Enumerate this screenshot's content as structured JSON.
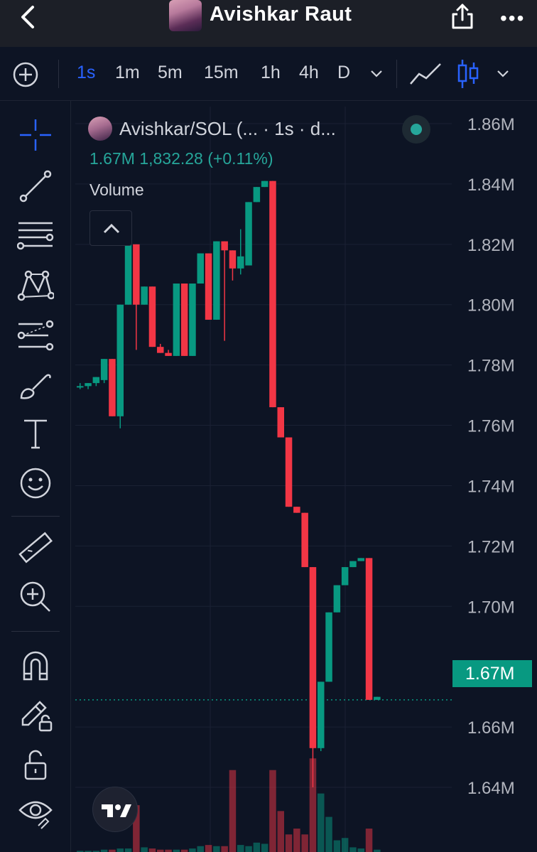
{
  "header": {
    "title": "Avishkar Raut",
    "back_icon": "chevron-left-icon",
    "share_icon": "share-icon",
    "more_icon": "more-dots-icon"
  },
  "toolbar": {
    "add_icon": "plus-circle-icon",
    "intervals": [
      "1s",
      "1m",
      "5m",
      "15m",
      "1h",
      "4h",
      "D"
    ],
    "active_interval": "1s",
    "chart_styles": [
      "line-chart-icon",
      "candles-icon"
    ]
  },
  "sidebar": {
    "tools": [
      "crosshair-icon",
      "trendline-icon",
      "fib-retracement-icon",
      "pattern-icon",
      "prediction-icon",
      "brush-icon",
      "text-icon",
      "emoji-icon",
      "ruler-icon",
      "zoom-in-icon",
      "magnet-icon",
      "lock-drawing-icon",
      "lock-icon",
      "eye-icon"
    ]
  },
  "legend": {
    "symbol": "Avishkar/SOL (... · 1s · d...",
    "values": "1.67M  1,832.28 (+0.11%)",
    "volume_label": "Volume"
  },
  "colors": {
    "up": "#089981",
    "down": "#f23645",
    "accent": "#2962ff",
    "background": "#0d1424"
  },
  "chart_data": {
    "type": "candlestick",
    "y_ticks": [
      "1.86M",
      "1.84M",
      "1.82M",
      "1.80M",
      "1.78M",
      "1.76M",
      "1.74M",
      "1.72M",
      "1.70M",
      "1.66M",
      "1.64M"
    ],
    "current_price": "1.67M",
    "ylim": [
      1.63,
      1.865
    ],
    "candles": [
      {
        "o": 1.773,
        "h": 1.774,
        "l": 1.772,
        "c": 1.773
      },
      {
        "o": 1.773,
        "h": 1.774,
        "l": 1.772,
        "c": 1.774
      },
      {
        "o": 1.774,
        "h": 1.776,
        "l": 1.773,
        "c": 1.776
      },
      {
        "o": 1.775,
        "h": 1.782,
        "l": 1.774,
        "c": 1.782
      },
      {
        "o": 1.782,
        "h": 1.782,
        "l": 1.763,
        "c": 1.763
      },
      {
        "o": 1.763,
        "h": 1.8,
        "l": 1.759,
        "c": 1.8
      },
      {
        "o": 1.8,
        "h": 1.82,
        "l": 1.8,
        "c": 1.82
      },
      {
        "o": 1.82,
        "h": 1.82,
        "l": 1.785,
        "c": 1.8
      },
      {
        "o": 1.8,
        "h": 1.806,
        "l": 1.8,
        "c": 1.806
      },
      {
        "o": 1.806,
        "h": 1.806,
        "l": 1.786,
        "c": 1.786
      },
      {
        "o": 1.786,
        "h": 1.787,
        "l": 1.784,
        "c": 1.784
      },
      {
        "o": 1.784,
        "h": 1.785,
        "l": 1.783,
        "c": 1.783
      },
      {
        "o": 1.783,
        "h": 1.807,
        "l": 1.783,
        "c": 1.807
      },
      {
        "o": 1.807,
        "h": 1.807,
        "l": 1.783,
        "c": 1.783
      },
      {
        "o": 1.783,
        "h": 1.807,
        "l": 1.783,
        "c": 1.807
      },
      {
        "o": 1.807,
        "h": 1.817,
        "l": 1.807,
        "c": 1.817
      },
      {
        "o": 1.817,
        "h": 1.817,
        "l": 1.795,
        "c": 1.795
      },
      {
        "o": 1.795,
        "h": 1.821,
        "l": 1.795,
        "c": 1.821
      },
      {
        "o": 1.821,
        "h": 1.821,
        "l": 1.788,
        "c": 1.818
      },
      {
        "o": 1.818,
        "h": 1.818,
        "l": 1.808,
        "c": 1.812
      },
      {
        "o": 1.812,
        "h": 1.825,
        "l": 1.81,
        "c": 1.816
      },
      {
        "o": 1.813,
        "h": 1.834,
        "l": 1.813,
        "c": 1.834
      },
      {
        "o": 1.834,
        "h": 1.839,
        "l": 1.834,
        "c": 1.839
      },
      {
        "o": 1.839,
        "h": 1.841,
        "l": 1.839,
        "c": 1.841
      },
      {
        "o": 1.841,
        "h": 1.841,
        "l": 1.766,
        "c": 1.766
      },
      {
        "o": 1.766,
        "h": 1.766,
        "l": 1.756,
        "c": 1.756
      },
      {
        "o": 1.756,
        "h": 1.756,
        "l": 1.733,
        "c": 1.733
      },
      {
        "o": 1.733,
        "h": 1.733,
        "l": 1.731,
        "c": 1.731
      },
      {
        "o": 1.731,
        "h": 1.731,
        "l": 1.713,
        "c": 1.713
      },
      {
        "o": 1.713,
        "h": 1.713,
        "l": 1.64,
        "c": 1.653
      },
      {
        "o": 1.653,
        "h": 1.675,
        "l": 1.652,
        "c": 1.675
      },
      {
        "o": 1.675,
        "h": 1.698,
        "l": 1.675,
        "c": 1.698
      },
      {
        "o": 1.698,
        "h": 1.707,
        "l": 1.698,
        "c": 1.707
      },
      {
        "o": 1.707,
        "h": 1.713,
        "l": 1.707,
        "c": 1.713
      },
      {
        "o": 1.713,
        "h": 1.715,
        "l": 1.713,
        "c": 1.715
      },
      {
        "o": 1.715,
        "h": 1.716,
        "l": 1.715,
        "c": 1.716
      },
      {
        "o": 1.716,
        "h": 1.716,
        "l": 1.669,
        "c": 1.669
      },
      {
        "o": 1.669,
        "h": 1.67,
        "l": 1.669,
        "c": 1.67
      }
    ],
    "volumes": [
      1,
      1,
      1,
      2,
      2,
      3,
      3,
      40,
      4,
      3,
      2,
      2,
      2,
      2,
      3,
      5,
      6,
      5,
      5,
      70,
      6,
      5,
      8,
      7,
      70,
      35,
      15,
      20,
      15,
      80,
      50,
      30,
      10,
      12,
      4,
      3,
      20,
      2
    ],
    "vol_max": 85
  }
}
